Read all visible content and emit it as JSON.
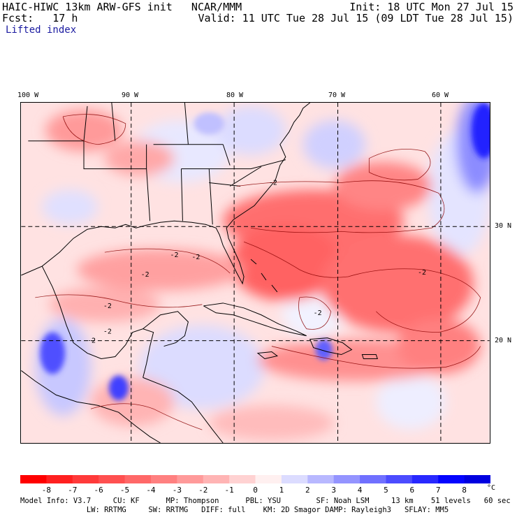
{
  "header": {
    "model_line": "HAIC-HIWC 13km ARW-GFS init   NCAR/MMM",
    "init_line": "Init: 18 UTC Mon 27 Jul 15",
    "fcst_line": "Fcst:   17 h",
    "valid_line": "Valid: 11 UTC Tue 28 Jul 15 (09 LDT Tue 28 Jul 15)",
    "field_name": "Lifted index"
  },
  "map": {
    "lon_labels": [
      "100 W",
      "90 W",
      "80 W",
      "70 W",
      "60 W"
    ],
    "lat_labels": [
      "30 N",
      "20 N"
    ],
    "contour_labels": [
      "-2",
      "-2",
      "-2",
      "-2",
      "-2",
      "-2",
      "-2",
      "-2",
      "-2"
    ]
  },
  "colorbar": {
    "ticks": [
      "-8",
      "-7",
      "-6",
      "-5",
      "-4",
      "-3",
      "-2",
      "-1",
      "0",
      "1",
      "2",
      "3",
      "4",
      "5",
      "6",
      "7",
      "8"
    ],
    "unit": "°C",
    "colors": [
      "#ff0000",
      "#ff2020",
      "#ff3a3a",
      "#ff5050",
      "#ff6868",
      "#ff8080",
      "#ff9a9a",
      "#ffb4b4",
      "#ffd2d2",
      "#fff0f0",
      "#dcdcff",
      "#b8b8ff",
      "#9494ff",
      "#7070ff",
      "#4c4cff",
      "#2828ff",
      "#0404ff",
      "#0000e0"
    ]
  },
  "model_info": {
    "line1": "Model Info: V3.7     CU: KF      MP: Thompson      PBL: YSU        SF: Noah LSM     13 km    51 levels   60 sec",
    "line2": "               LW: RRTMG     SW: RRTMG   DIFF: full    KM: 2D Smagor DAMP: Rayleigh3   SFLAY: MM5"
  }
}
